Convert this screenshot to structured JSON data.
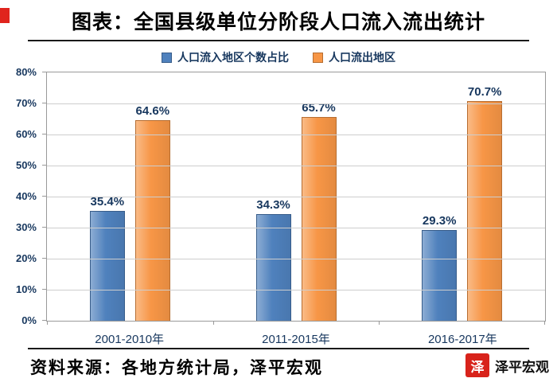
{
  "page": {
    "title": "图表：全国县级单位分阶段人口流入流出统计",
    "source_note": "资料来源：各地方统计局，泽平宏观",
    "brand": "泽平宏观",
    "brand_logo_char": "泽"
  },
  "colors": {
    "inflow_blue": "#4F81BD",
    "inflow_blue_border": "#385D8A",
    "outflow_orange": "#F79646",
    "outflow_orange_border": "#B66D31",
    "axis_text": "#17375E",
    "brand_red": "#D8231B"
  },
  "chart_data": {
    "type": "bar",
    "title": "图表：全国县级单位分阶段人口流入流出统计",
    "categories": [
      "2001-2010年",
      "2011-2015年",
      "2016-2017年"
    ],
    "series": [
      {
        "key": "inflow",
        "name": "人口流入地区个数占比",
        "color": "#4F81BD",
        "border": "#385D8A",
        "values": [
          35.4,
          34.3,
          29.3
        ]
      },
      {
        "key": "outflow",
        "name": "人口流出地区",
        "color": "#F79646",
        "border": "#B66D31",
        "values": [
          64.6,
          65.7,
          70.7
        ]
      }
    ],
    "value_suffix": "%",
    "ylim": [
      0,
      80
    ],
    "ytick_step": 10,
    "yticks": [
      "0%",
      "10%",
      "20%",
      "30%",
      "40%",
      "50%",
      "60%",
      "70%",
      "80%"
    ],
    "grid": true,
    "legend_position": "top"
  }
}
